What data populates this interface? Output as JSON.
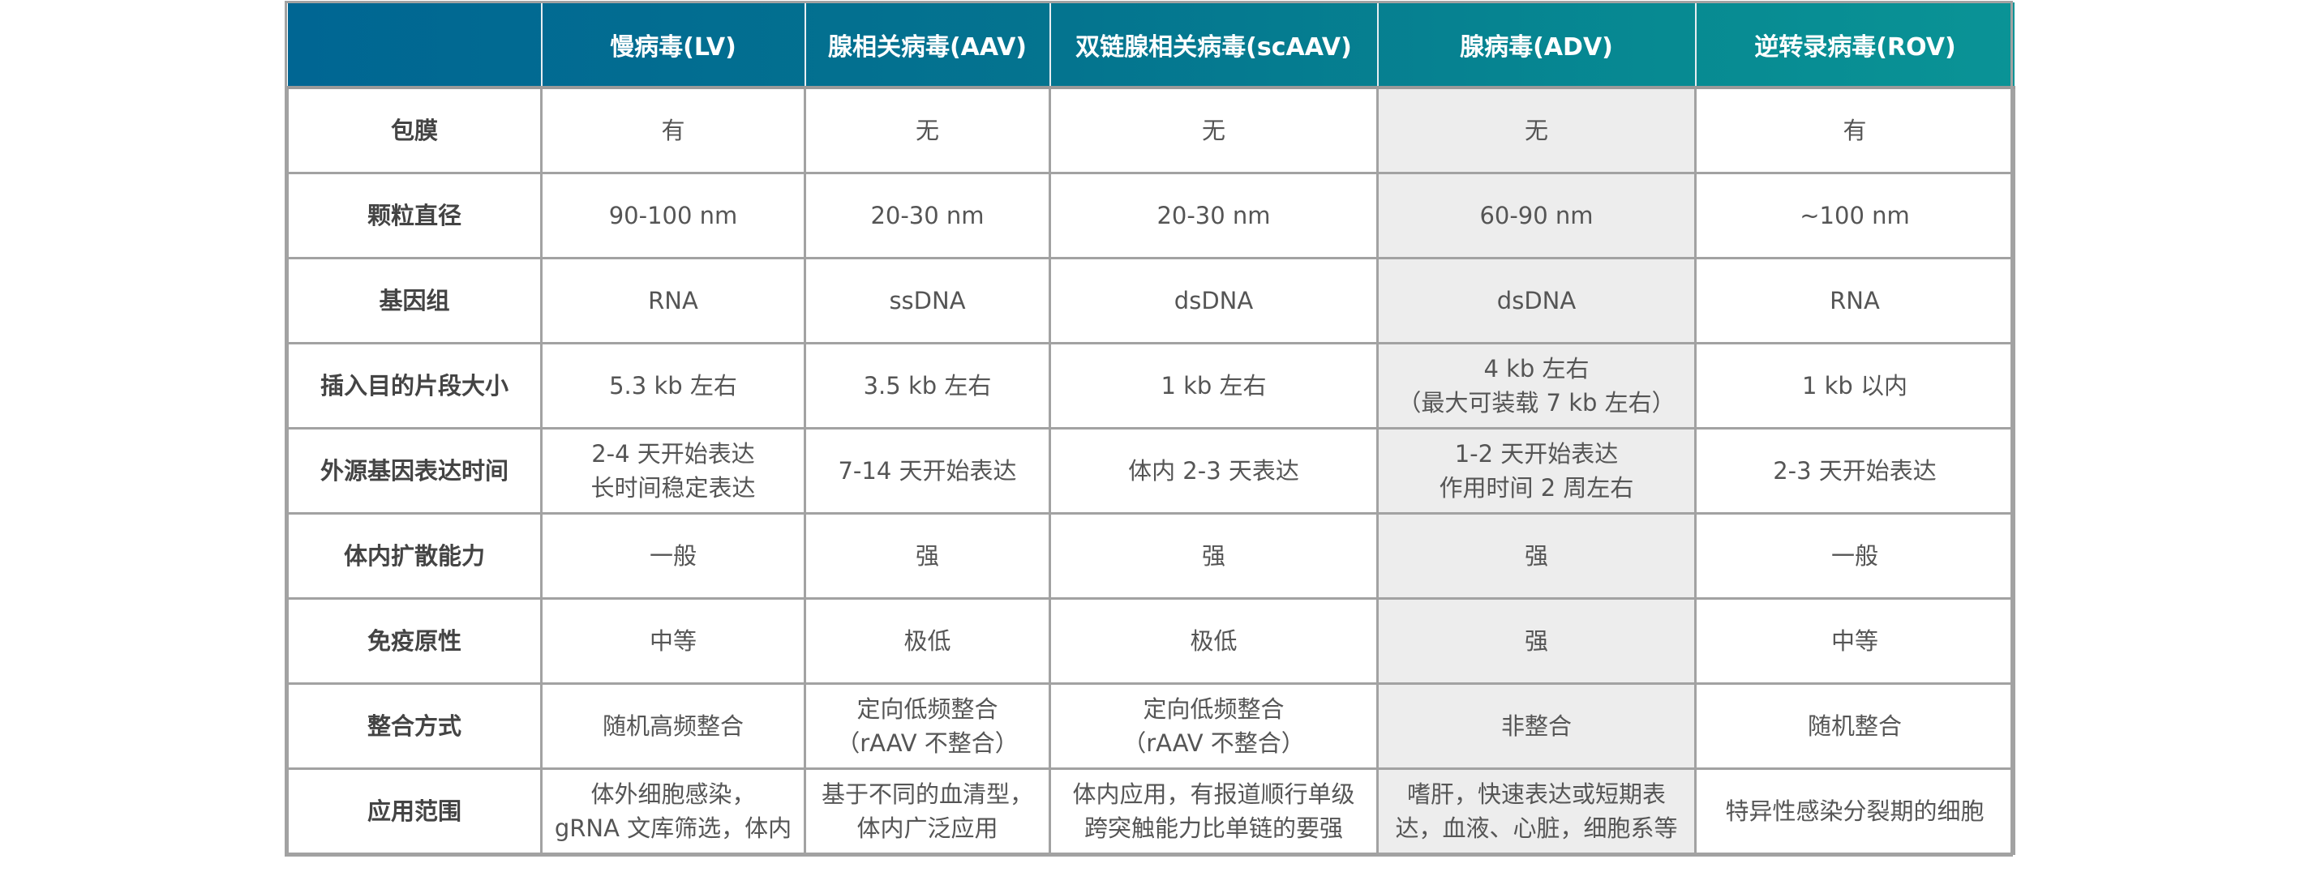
{
  "columns": [
    "",
    "慢病毒(LV)",
    "腺相关病毒(AAV)",
    "双链腺相关病毒(scAAV)",
    "腺病毒(ADV)",
    "逆转录病毒(ROV)"
  ],
  "colors": {
    "header_start": "#006693",
    "header_end": "#0a9396",
    "highlight_column": "#ededed",
    "grid": "#a2a2a2"
  },
  "rows": [
    {
      "label": "包膜",
      "cells": [
        [
          "有"
        ],
        [
          "无"
        ],
        [
          "无"
        ],
        [
          "无"
        ],
        [
          "有"
        ]
      ]
    },
    {
      "label": "颗粒直径",
      "cells": [
        [
          "90-100 nm"
        ],
        [
          "20-30 nm"
        ],
        [
          "20-30 nm"
        ],
        [
          "60-90 nm"
        ],
        [
          "~100 nm"
        ]
      ]
    },
    {
      "label": "基因组",
      "cells": [
        [
          "RNA"
        ],
        [
          "ssDNA"
        ],
        [
          "dsDNA"
        ],
        [
          "dsDNA"
        ],
        [
          "RNA"
        ]
      ]
    },
    {
      "label": "插入目的片段大小",
      "cells": [
        [
          "5.3 kb 左右"
        ],
        [
          "3.5 kb 左右"
        ],
        [
          "1 kb 左右"
        ],
        [
          "4 kb 左右",
          "（最大可装载 7 kb 左右）"
        ],
        [
          "1 kb 以内"
        ]
      ]
    },
    {
      "label": "外源基因表达时间",
      "cells": [
        [
          "2-4 天开始表达",
          "长时间稳定表达"
        ],
        [
          "7-14 天开始表达"
        ],
        [
          "体内 2-3 天表达"
        ],
        [
          "1-2 天开始表达",
          "作用时间 2 周左右"
        ],
        [
          "2-3 天开始表达"
        ]
      ]
    },
    {
      "label": "体内扩散能力",
      "cells": [
        [
          "一般"
        ],
        [
          "强"
        ],
        [
          "强"
        ],
        [
          "强"
        ],
        [
          "一般"
        ]
      ]
    },
    {
      "label": "免疫原性",
      "cells": [
        [
          "中等"
        ],
        [
          "极低"
        ],
        [
          "极低"
        ],
        [
          "强"
        ],
        [
          "中等"
        ]
      ]
    },
    {
      "label": "整合方式",
      "cells": [
        [
          "随机高频整合"
        ],
        [
          "定向低频整合",
          "（rAAV 不整合）"
        ],
        [
          "定向低频整合",
          "（rAAV 不整合）"
        ],
        [
          "非整合"
        ],
        [
          "随机整合"
        ]
      ]
    },
    {
      "label": "应用范围",
      "cells": [
        [
          "体外细胞感染，",
          "gRNA 文库筛选，体内"
        ],
        [
          "基于不同的血清型，",
          "体内广泛应用"
        ],
        [
          "体内应用，有报道顺行单级",
          "跨突触能力比单链的要强"
        ],
        [
          "嗜肝，快速表达或短期表",
          "达，血液、心脏，细胞系等"
        ],
        [
          "特异性感染分裂期的细胞"
        ]
      ]
    }
  ]
}
